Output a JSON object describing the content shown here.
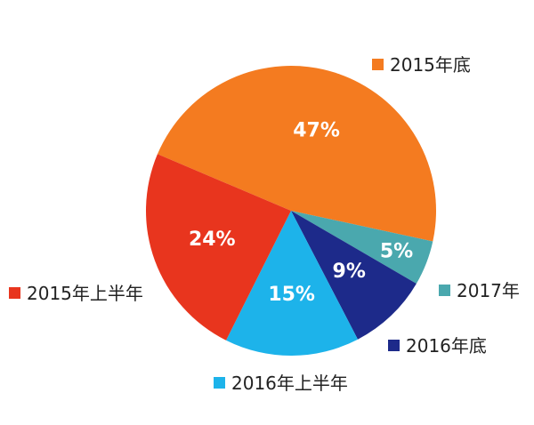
{
  "chart_data": {
    "type": "pie",
    "title": "",
    "labels": [
      "2015年底",
      "2017年",
      "2016年底",
      "2016年上半年",
      "2015年上半年"
    ],
    "values": [
      47,
      5,
      9,
      15,
      24
    ],
    "value_labels": [
      "47%",
      "5%",
      "9%",
      "15%",
      "24%"
    ],
    "colors": [
      "#F47B20",
      "#4AA8AE",
      "#1D2A8A",
      "#1DB3EA",
      "#E8351E"
    ],
    "legend": "beside each slice"
  }
}
